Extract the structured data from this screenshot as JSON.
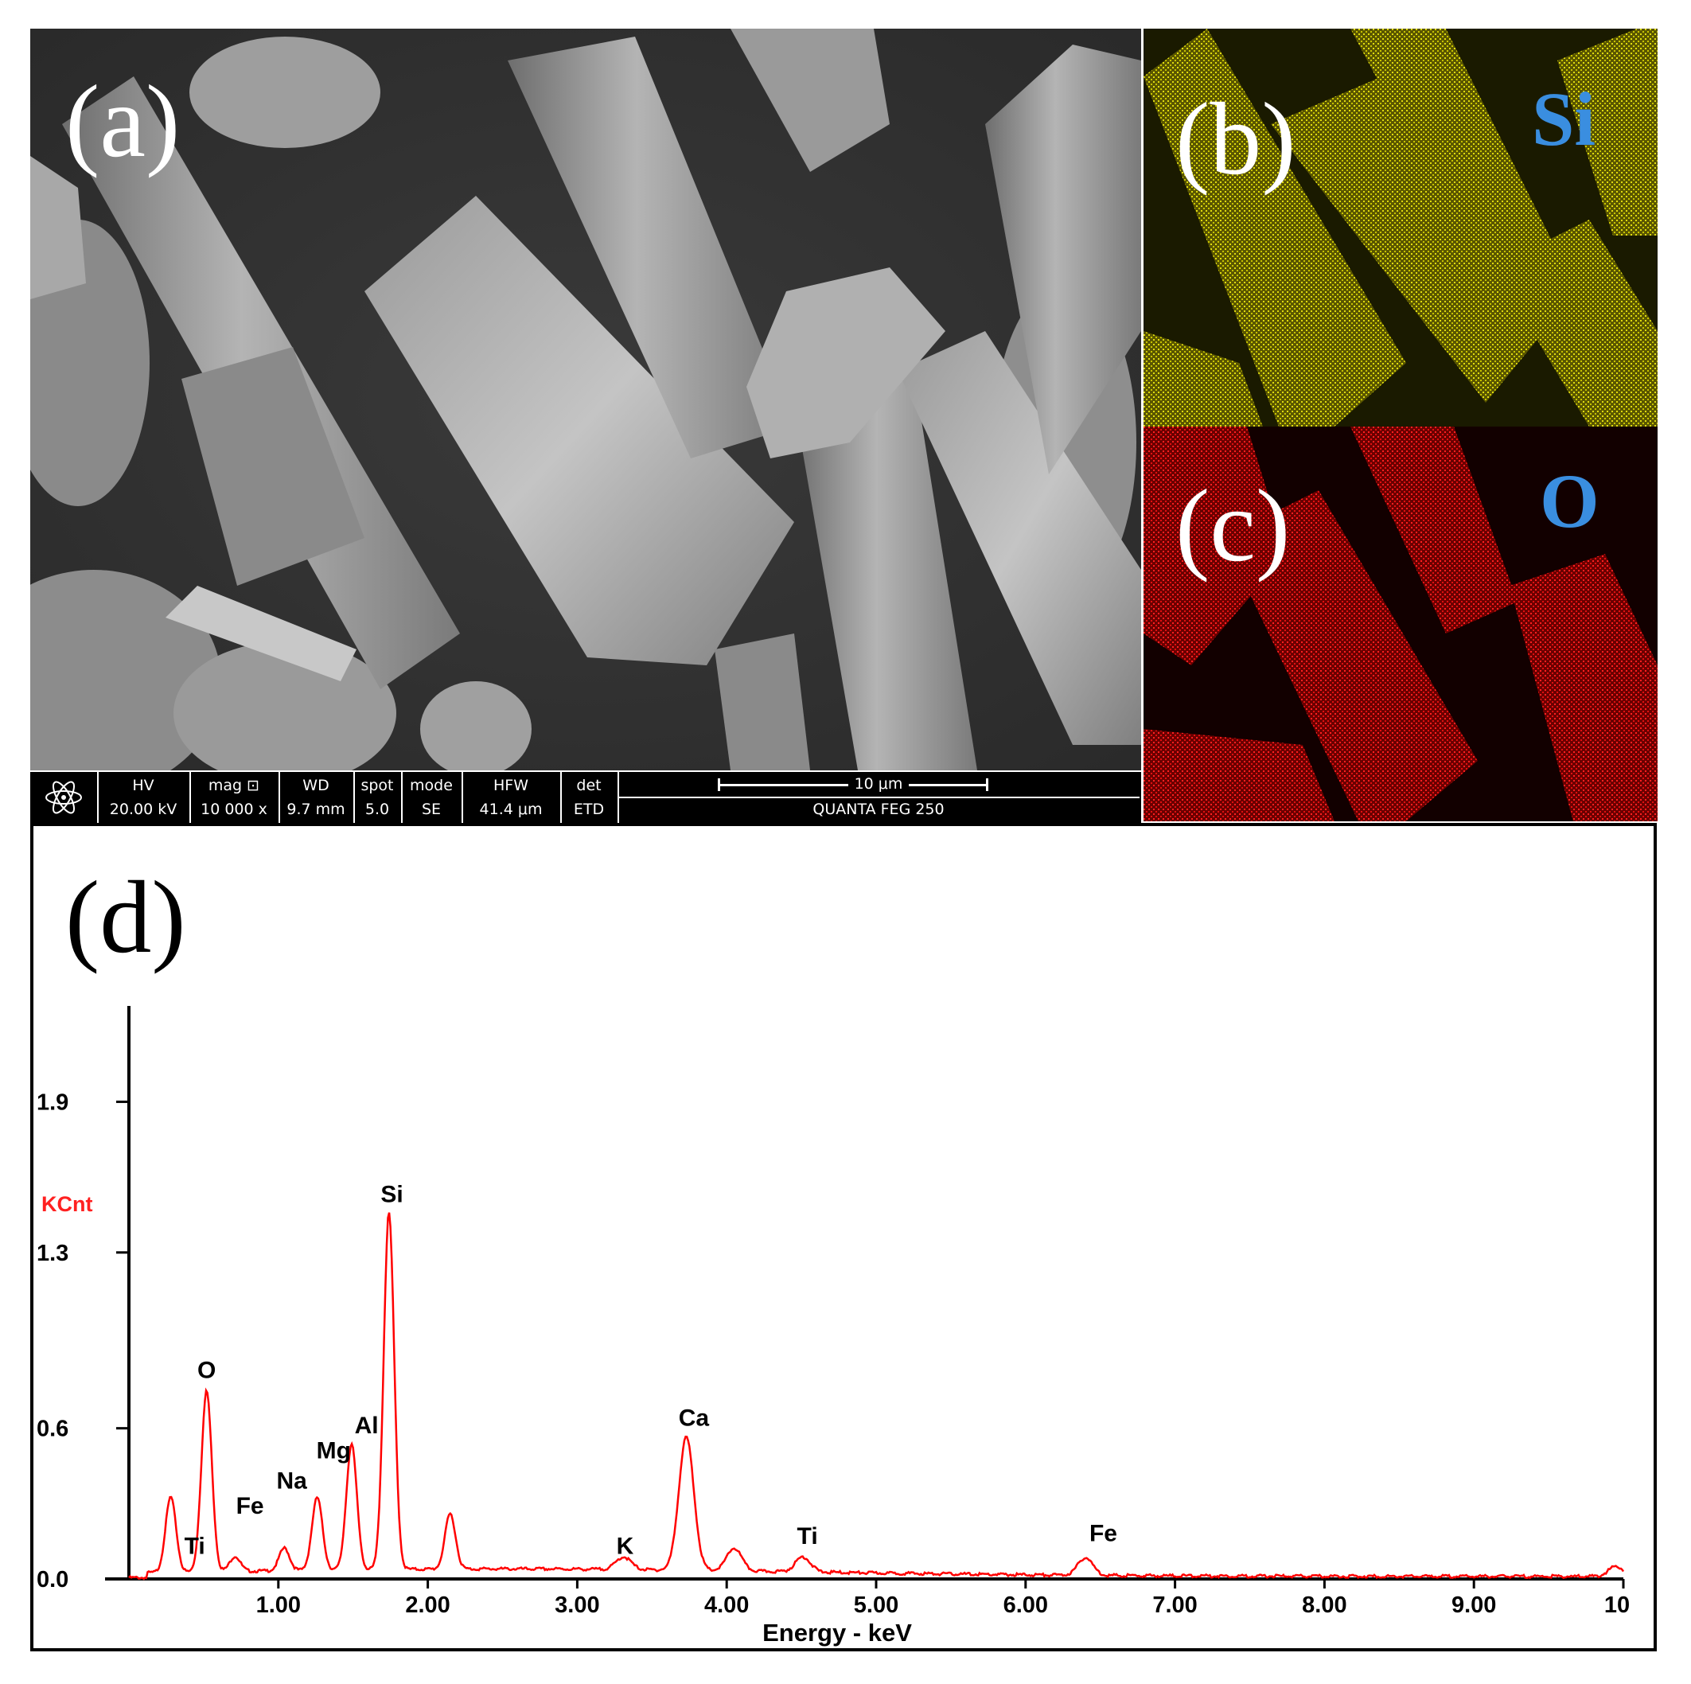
{
  "panels": {
    "a": "(a)",
    "b": "(b)",
    "c": "(c)",
    "d": "(d)"
  },
  "maps": {
    "si_label": "Si",
    "o_label": "O",
    "label_color": "#3a8ee0",
    "si_color": "#d6d200",
    "o_color": "#e01010"
  },
  "sem_databar": {
    "cells": [
      {
        "h": "HV",
        "v": "20.00 kV"
      },
      {
        "h": "mag ⊡",
        "v": "10 000 x"
      },
      {
        "h": "WD",
        "v": "9.7 mm"
      },
      {
        "h": "spot",
        "v": "5.0"
      },
      {
        "h": "mode",
        "v": "SE"
      },
      {
        "h": "HFW",
        "v": "41.4 μm"
      },
      {
        "h": "det",
        "v": "ETD"
      }
    ],
    "scale_label": "10 μm",
    "instrument": "QUANTA FEG 250"
  },
  "chart_data": {
    "type": "line",
    "xlabel": "Energy - keV",
    "ylabel": "KCnt",
    "ylabel_color": "#ff2020",
    "line_color": "#ff0000",
    "xlim": [
      0,
      10
    ],
    "ylim": [
      0,
      2.25
    ],
    "xticks": [
      {
        "value": 1,
        "label": "1.00"
      },
      {
        "value": 2,
        "label": "2.00"
      },
      {
        "value": 3,
        "label": "3.00"
      },
      {
        "value": 4,
        "label": "4.00"
      },
      {
        "value": 5,
        "label": "5.00"
      },
      {
        "value": 6,
        "label": "6.00"
      },
      {
        "value": 7,
        "label": "7.00"
      },
      {
        "value": 8,
        "label": "8.00"
      },
      {
        "value": 9,
        "label": "9.00"
      },
      {
        "value": 10,
        "label": "10"
      }
    ],
    "yticks": [
      {
        "value": 0.0,
        "label": "0.0"
      },
      {
        "value": 0.6,
        "label": "0.6"
      },
      {
        "value": 1.3,
        "label": "1.3"
      },
      {
        "value": 1.9,
        "label": "1.9"
      }
    ],
    "peaks": [
      {
        "x": 0.28,
        "y": 0.3
      },
      {
        "x": 0.52,
        "y": 0.72
      },
      {
        "x": 0.71,
        "y": 0.06
      },
      {
        "x": 1.04,
        "y": 0.09
      },
      {
        "x": 1.26,
        "y": 0.29
      },
      {
        "x": 1.49,
        "y": 0.5
      },
      {
        "x": 1.74,
        "y": 1.42
      },
      {
        "x": 2.15,
        "y": 0.22
      },
      {
        "x": 3.31,
        "y": 0.05
      },
      {
        "x": 3.73,
        "y": 0.53
      },
      {
        "x": 4.05,
        "y": 0.09
      },
      {
        "x": 4.51,
        "y": 0.06
      },
      {
        "x": 6.4,
        "y": 0.07
      },
      {
        "x": 9.95,
        "y": 0.04
      }
    ],
    "annotations": [
      {
        "text": "O",
        "x": 0.52,
        "y": 0.8
      },
      {
        "text": "Ti",
        "x": 0.44,
        "y": 0.1
      },
      {
        "text": "Fe",
        "x": 0.81,
        "y": 0.26
      },
      {
        "text": "Na",
        "x": 1.09,
        "y": 0.36
      },
      {
        "text": "Mg",
        "x": 1.37,
        "y": 0.48
      },
      {
        "text": "Al",
        "x": 1.59,
        "y": 0.58
      },
      {
        "text": "Si",
        "x": 1.76,
        "y": 1.5
      },
      {
        "text": "K",
        "x": 3.32,
        "y": 0.1
      },
      {
        "text": "Ca",
        "x": 3.78,
        "y": 0.61
      },
      {
        "text": "Ti",
        "x": 4.54,
        "y": 0.14
      },
      {
        "text": "Fe",
        "x": 6.52,
        "y": 0.15
      }
    ]
  }
}
